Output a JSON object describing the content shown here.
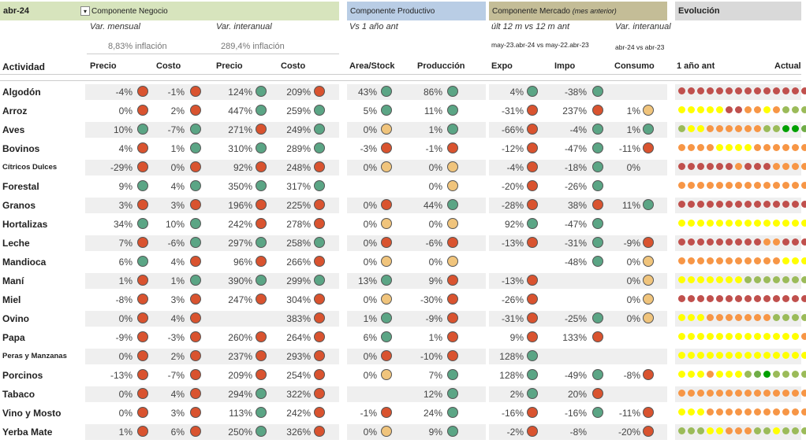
{
  "header": {
    "period": "abr-24",
    "negocio": "Componente Negocio",
    "productivo": "Componente Productivo",
    "mercado": "Componente Mercado",
    "mercado_note": "(mes anterior)",
    "evolucion": "Evolución"
  },
  "subheaders": {
    "var_mensual": "Var. mensual",
    "var_interanual": "Var. interanual",
    "infl_mensual": "8,83% inflación",
    "infl_interanual": "289,4% inflación",
    "vs_1_ano": "Vs 1 año ant",
    "ult_12m": "últ 12 m vs 12 m ant",
    "ult_12m_range": "may-23.abr-24 vs may-22.abr-23",
    "var_interanual_mer": "Var. interanual",
    "interanual_range": "abr-24 vs abr-23"
  },
  "columns": {
    "actividad": "Actividad",
    "precio_m": "Precio",
    "costo_m": "Costo",
    "precio_i": "Precio",
    "costo_i": "Costo",
    "area": "Area/Stock",
    "produccion": "Producción",
    "expo": "Expo",
    "impo": "Impo",
    "consumo": "Consumo",
    "evo_start": "1 año ant",
    "evo_end": "Actual"
  },
  "colors": {
    "red": "#d9532f",
    "green": "#5ba585",
    "orange": "#f0c47c"
  },
  "rows": [
    {
      "name": "Algodón",
      "pm": [
        "-4%",
        "r"
      ],
      "cm": [
        "-1%",
        "r"
      ],
      "pi": [
        "124%",
        "g"
      ],
      "ci": [
        "209%",
        "r"
      ],
      "area": [
        "43%",
        "g"
      ],
      "prod": [
        "86%",
        "g"
      ],
      "expo": [
        "4%",
        "g"
      ],
      "impo": [
        "-38%",
        "g"
      ],
      "cons": null,
      "evo": [
        "r",
        "r",
        "r",
        "r",
        "r",
        "r",
        "r",
        "r",
        "r",
        "r",
        "r",
        "r",
        "r",
        "r",
        "r"
      ]
    },
    {
      "name": "Arroz",
      "pm": [
        "0%",
        "r"
      ],
      "cm": [
        "2%",
        "r"
      ],
      "pi": [
        "447%",
        "g"
      ],
      "ci": [
        "259%",
        "g"
      ],
      "area": [
        "5%",
        "g"
      ],
      "prod": [
        "11%",
        "g"
      ],
      "expo": [
        "-31%",
        "r"
      ],
      "impo": [
        "237%",
        "r"
      ],
      "cons": [
        "1%",
        "o"
      ],
      "evo": [
        "y",
        "y",
        "y",
        "y",
        "y",
        "r",
        "r",
        "o",
        "o",
        "y",
        "o",
        "lg",
        "lg",
        "lg",
        "lg"
      ]
    },
    {
      "name": "Aves",
      "pm": [
        "10%",
        "g"
      ],
      "cm": [
        "-7%",
        "g"
      ],
      "pi": [
        "271%",
        "r"
      ],
      "ci": [
        "249%",
        "g"
      ],
      "area": [
        "0%",
        "o"
      ],
      "prod": [
        "1%",
        "g"
      ],
      "expo": [
        "-66%",
        "r"
      ],
      "impo": [
        "-4%",
        "g"
      ],
      "cons": [
        "1%",
        "g"
      ],
      "evo": [
        "lg",
        "y",
        "y",
        "o",
        "o",
        "o",
        "o",
        "o",
        "o",
        "lg",
        "lg",
        "dg",
        "dg",
        "g",
        "lg"
      ]
    },
    {
      "name": "Bovinos",
      "pm": [
        "4%",
        "r"
      ],
      "cm": [
        "1%",
        "g"
      ],
      "pi": [
        "310%",
        "g"
      ],
      "ci": [
        "289%",
        "g"
      ],
      "area": [
        "-3%",
        "r"
      ],
      "prod": [
        "-1%",
        "r"
      ],
      "expo": [
        "-12%",
        "r"
      ],
      "impo": [
        "-47%",
        "g"
      ],
      "cons": [
        "-11%",
        "r"
      ],
      "evo": [
        "o",
        "o",
        "o",
        "o",
        "y",
        "y",
        "y",
        "y",
        "o",
        "o",
        "o",
        "o",
        "o",
        "o",
        "o"
      ]
    },
    {
      "name": "Cítricos Dulces",
      "pm": [
        "-29%",
        "r"
      ],
      "cm": [
        "0%",
        "r"
      ],
      "pi": [
        "92%",
        "r"
      ],
      "ci": [
        "248%",
        "r"
      ],
      "area": [
        "0%",
        "o"
      ],
      "prod": [
        "0%",
        "o"
      ],
      "expo": [
        "-4%",
        "r"
      ],
      "impo": [
        "-18%",
        "g"
      ],
      "cons": [
        "0%",
        ""
      ],
      "evo": [
        "r",
        "r",
        "r",
        "r",
        "r",
        "r",
        "o",
        "r",
        "r",
        "r",
        "o",
        "o",
        "o",
        "o",
        "o"
      ]
    },
    {
      "name": "Forestal",
      "pm": [
        "9%",
        "g"
      ],
      "cm": [
        "4%",
        "g"
      ],
      "pi": [
        "350%",
        "g"
      ],
      "ci": [
        "317%",
        "g"
      ],
      "area": null,
      "prod": [
        "0%",
        "o"
      ],
      "expo": [
        "-20%",
        "r"
      ],
      "impo": [
        "-26%",
        "g"
      ],
      "cons": null,
      "evo": [
        "o",
        "o",
        "o",
        "o",
        "o",
        "o",
        "o",
        "o",
        "o",
        "o",
        "o",
        "o",
        "o",
        "o",
        "o"
      ]
    },
    {
      "name": "Granos",
      "pm": [
        "3%",
        "r"
      ],
      "cm": [
        "3%",
        "r"
      ],
      "pi": [
        "196%",
        "r"
      ],
      "ci": [
        "225%",
        "r"
      ],
      "area": [
        "0%",
        "r"
      ],
      "prod": [
        "44%",
        "g"
      ],
      "expo": [
        "-28%",
        "r"
      ],
      "impo": [
        "38%",
        "r"
      ],
      "cons": [
        "11%",
        "g"
      ],
      "evo": [
        "r",
        "r",
        "r",
        "r",
        "r",
        "r",
        "r",
        "r",
        "r",
        "r",
        "r",
        "r",
        "r",
        "r",
        "r"
      ]
    },
    {
      "name": "Hortalizas",
      "pm": [
        "34%",
        "g"
      ],
      "cm": [
        "10%",
        "g"
      ],
      "pi": [
        "242%",
        "r"
      ],
      "ci": [
        "278%",
        "r"
      ],
      "area": [
        "0%",
        "o"
      ],
      "prod": [
        "0%",
        "o"
      ],
      "expo": [
        "92%",
        "g"
      ],
      "impo": [
        "-47%",
        "g"
      ],
      "cons": null,
      "evo": [
        "y",
        "y",
        "y",
        "y",
        "y",
        "y",
        "y",
        "y",
        "y",
        "y",
        "y",
        "y",
        "y",
        "y",
        "y"
      ]
    },
    {
      "name": "Leche",
      "pm": [
        "7%",
        "r"
      ],
      "cm": [
        "-6%",
        "g"
      ],
      "pi": [
        "297%",
        "g"
      ],
      "ci": [
        "258%",
        "g"
      ],
      "area": [
        "0%",
        "r"
      ],
      "prod": [
        "-6%",
        "r"
      ],
      "expo": [
        "-13%",
        "r"
      ],
      "impo": [
        "-31%",
        "g"
      ],
      "cons": [
        "-9%",
        "r"
      ],
      "evo": [
        "r",
        "r",
        "r",
        "r",
        "r",
        "r",
        "r",
        "r",
        "r",
        "o",
        "o",
        "r",
        "r",
        "r",
        "r"
      ]
    },
    {
      "name": "Mandioca",
      "pm": [
        "6%",
        "g"
      ],
      "cm": [
        "4%",
        "r"
      ],
      "pi": [
        "96%",
        "r"
      ],
      "ci": [
        "266%",
        "r"
      ],
      "area": [
        "0%",
        "o"
      ],
      "prod": [
        "0%",
        "o"
      ],
      "expo": null,
      "impo": [
        "-48%",
        "g"
      ],
      "cons": [
        "0%",
        "o"
      ],
      "evo": [
        "o",
        "o",
        "o",
        "o",
        "o",
        "o",
        "o",
        "o",
        "o",
        "o",
        "o",
        "y",
        "y",
        "y",
        "y"
      ]
    },
    {
      "name": "Maní",
      "pm": [
        "1%",
        "r"
      ],
      "cm": [
        "1%",
        "g"
      ],
      "pi": [
        "390%",
        "g"
      ],
      "ci": [
        "299%",
        "g"
      ],
      "area": [
        "13%",
        "g"
      ],
      "prod": [
        "9%",
        "r"
      ],
      "expo": [
        "-13%",
        "r"
      ],
      "impo": null,
      "cons": [
        "0%",
        "o"
      ],
      "evo": [
        "y",
        "y",
        "y",
        "y",
        "y",
        "y",
        "y",
        "lg",
        "lg",
        "lg",
        "lg",
        "lg",
        "lg",
        "lg",
        "lg"
      ]
    },
    {
      "name": "Miel",
      "pm": [
        "-8%",
        "r"
      ],
      "cm": [
        "3%",
        "r"
      ],
      "pi": [
        "247%",
        "r"
      ],
      "ci": [
        "304%",
        "r"
      ],
      "area": [
        "0%",
        "o"
      ],
      "prod": [
        "-30%",
        "r"
      ],
      "expo": [
        "-26%",
        "r"
      ],
      "impo": null,
      "cons": [
        "0%",
        "o"
      ],
      "evo": [
        "r",
        "r",
        "r",
        "r",
        "r",
        "r",
        "r",
        "r",
        "r",
        "r",
        "r",
        "r",
        "r",
        "r",
        "r"
      ]
    },
    {
      "name": "Ovino",
      "pm": [
        "0%",
        "r"
      ],
      "cm": [
        "4%",
        "r"
      ],
      "pi": null,
      "ci": [
        "383%",
        "r"
      ],
      "area": [
        "1%",
        "g"
      ],
      "prod": [
        "-9%",
        "r"
      ],
      "expo": [
        "-31%",
        "r"
      ],
      "impo": [
        "-25%",
        "g"
      ],
      "cons": [
        "0%",
        "o"
      ],
      "evo": [
        "y",
        "y",
        "y",
        "o",
        "o",
        "o",
        "o",
        "o",
        "o",
        "o",
        "lg",
        "lg",
        "lg",
        "lg",
        "lg"
      ]
    },
    {
      "name": "Papa",
      "pm": [
        "-9%",
        "r"
      ],
      "cm": [
        "-3%",
        "r"
      ],
      "pi": [
        "260%",
        "r"
      ],
      "ci": [
        "264%",
        "r"
      ],
      "area": [
        "6%",
        "g"
      ],
      "prod": [
        "1%",
        "r"
      ],
      "expo": [
        "9%",
        "r"
      ],
      "impo": [
        "133%",
        "r"
      ],
      "cons": null,
      "evo": [
        "y",
        "y",
        "y",
        "y",
        "y",
        "y",
        "y",
        "y",
        "y",
        "y",
        "y",
        "y",
        "y",
        "o",
        "o"
      ]
    },
    {
      "name": "Peras y Manzanas",
      "pm": [
        "0%",
        "r"
      ],
      "cm": [
        "2%",
        "r"
      ],
      "pi": [
        "237%",
        "r"
      ],
      "ci": [
        "293%",
        "r"
      ],
      "area": [
        "0%",
        "r"
      ],
      "prod": [
        "-10%",
        "r"
      ],
      "expo": [
        "128%",
        "g"
      ],
      "impo": null,
      "cons": null,
      "evo": [
        "y",
        "y",
        "y",
        "y",
        "y",
        "y",
        "y",
        "y",
        "y",
        "y",
        "y",
        "y",
        "y",
        "y",
        "y"
      ]
    },
    {
      "name": "Porcinos",
      "pm": [
        "-13%",
        "r"
      ],
      "cm": [
        "-7%",
        "r"
      ],
      "pi": [
        "209%",
        "r"
      ],
      "ci": [
        "254%",
        "r"
      ],
      "area": [
        "0%",
        "o"
      ],
      "prod": [
        "7%",
        "g"
      ],
      "expo": [
        "128%",
        "g"
      ],
      "impo": [
        "-49%",
        "g"
      ],
      "cons": [
        "-8%",
        "r"
      ],
      "evo": [
        "y",
        "y",
        "y",
        "o",
        "y",
        "y",
        "y",
        "lg",
        "g",
        "dg",
        "lg",
        "lg",
        "lg",
        "lg",
        "lg"
      ]
    },
    {
      "name": "Tabaco",
      "pm": [
        "0%",
        "r"
      ],
      "cm": [
        "4%",
        "r"
      ],
      "pi": [
        "294%",
        "g"
      ],
      "ci": [
        "322%",
        "r"
      ],
      "area": null,
      "prod": [
        "12%",
        "g"
      ],
      "expo": [
        "2%",
        "g"
      ],
      "impo": [
        "20%",
        "r"
      ],
      "cons": null,
      "evo": [
        "o",
        "o",
        "o",
        "o",
        "o",
        "o",
        "o",
        "o",
        "o",
        "o",
        "o",
        "o",
        "o",
        "o",
        "o"
      ]
    },
    {
      "name": "Vino y Mosto",
      "pm": [
        "0%",
        "r"
      ],
      "cm": [
        "3%",
        "r"
      ],
      "pi": [
        "113%",
        "g"
      ],
      "ci": [
        "242%",
        "r"
      ],
      "area": [
        "-1%",
        "r"
      ],
      "prod": [
        "24%",
        "g"
      ],
      "expo": [
        "-16%",
        "r"
      ],
      "impo": [
        "-16%",
        "g"
      ],
      "cons": [
        "-11%",
        "r"
      ],
      "evo": [
        "y",
        "y",
        "y",
        "o",
        "o",
        "o",
        "o",
        "o",
        "o",
        "o",
        "o",
        "o",
        "o",
        "o",
        "o"
      ]
    },
    {
      "name": "Yerba Mate",
      "pm": [
        "1%",
        "r"
      ],
      "cm": [
        "6%",
        "r"
      ],
      "pi": [
        "250%",
        "g"
      ],
      "ci": [
        "326%",
        "r"
      ],
      "area": [
        "0%",
        "o"
      ],
      "prod": [
        "9%",
        "g"
      ],
      "expo": [
        "-2%",
        "r"
      ],
      "impo": [
        "-8%",
        ""
      ],
      "cons": [
        "-20%",
        "r"
      ],
      "evo": [
        "lg",
        "lg",
        "lg",
        "y",
        "y",
        "o",
        "o",
        "o",
        "lg",
        "lg",
        "y",
        "lg",
        "lg",
        "lg",
        "lg"
      ]
    }
  ]
}
